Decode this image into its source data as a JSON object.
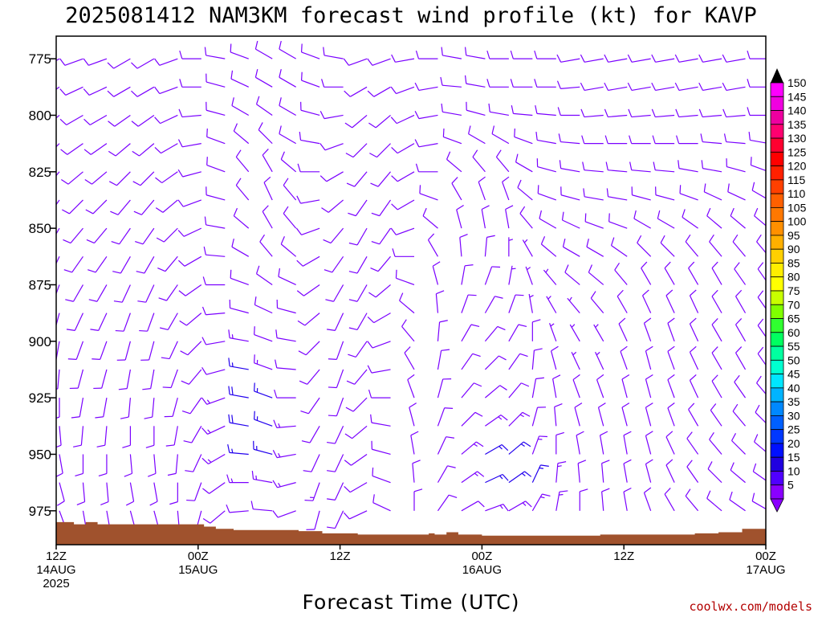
{
  "chart_data": {
    "type": "wind-barb-time-height",
    "title": "2025081412 NAM3KM forecast wind profile (kt) for KAVP",
    "xlabel": "Forecast Time (UTC)",
    "credit": "coolwx.com/models",
    "y_axis": {
      "quantity": "pressure (hPa)",
      "range": [
        765,
        990
      ],
      "inverted": true,
      "ticks": [
        "775",
        "800",
        "825",
        "850",
        "875",
        "900",
        "925",
        "950",
        "975"
      ]
    },
    "x_axis": {
      "range_hours": [
        0,
        60
      ],
      "ticks": [
        {
          "hour": 0,
          "lines": [
            "12Z",
            "14AUG",
            "2025"
          ]
        },
        {
          "hour": 12,
          "lines": [
            "00Z",
            "15AUG"
          ]
        },
        {
          "hour": 24,
          "lines": [
            "12Z"
          ]
        },
        {
          "hour": 36,
          "lines": [
            "00Z",
            "16AUG"
          ]
        },
        {
          "hour": 48,
          "lines": [
            "12Z"
          ]
        },
        {
          "hour": 60,
          "lines": [
            "00Z",
            "17AUG"
          ]
        }
      ]
    },
    "colorbar": {
      "labels": [
        "150",
        "145",
        "140",
        "135",
        "130",
        "125",
        "120",
        "115",
        "110",
        "105",
        "100",
        "95",
        "90",
        "85",
        "80",
        "75",
        "70",
        "65",
        "60",
        "55",
        "50",
        "45",
        "40",
        "35",
        "30",
        "25",
        "20",
        "15",
        "10",
        "5"
      ],
      "colors": [
        "#ff00ff",
        "#f000e0",
        "#ee00a0",
        "#ff0070",
        "#ff0030",
        "#ff0000",
        "#ff2000",
        "#ff4000",
        "#ff6000",
        "#ff7800",
        "#ff9000",
        "#ffb000",
        "#ffd000",
        "#ffee00",
        "#ffff00",
        "#c8ff00",
        "#80ff00",
        "#30ff30",
        "#00ff60",
        "#00ffa0",
        "#00ffd0",
        "#00e6ff",
        "#00b4ff",
        "#0088ff",
        "#0060ff",
        "#0038ff",
        "#0010ff",
        "#2000e0",
        "#5000ff",
        "#8a00ff"
      ]
    },
    "terrain_color": "#a0522d",
    "barb_color": "#7a00ff",
    "barb_color_strong": "#2200ee",
    "surface_pressure": {
      "hour": [
        0,
        1.5,
        2.5,
        3.5,
        6,
        9,
        11.5,
        12.5,
        13.5,
        15,
        18,
        20.5,
        22.5,
        24.5,
        25.5,
        27,
        30,
        31.5,
        32,
        33,
        34,
        36,
        39,
        42,
        44,
        46,
        48,
        50,
        52,
        54,
        56,
        58,
        60
      ],
      "pressure": [
        980,
        981,
        980,
        981,
        981,
        981,
        981,
        982,
        983,
        983.5,
        983.5,
        984,
        985,
        985,
        985.5,
        985.5,
        985.5,
        985,
        985.5,
        984.5,
        985.5,
        986,
        986,
        986,
        986,
        985.5,
        985.5,
        985.5,
        985.5,
        985,
        984.5,
        983,
        983
      ]
    },
    "levels": [
      775,
      787.5,
      800,
      812.5,
      825,
      837.5,
      850,
      862.5,
      875,
      887.5,
      900,
      912.5,
      925,
      937.5,
      950,
      962.5,
      975
    ],
    "hours": [
      0,
      2,
      4,
      6,
      8,
      10,
      12,
      14,
      16,
      18,
      20,
      22,
      24,
      26,
      28,
      30,
      32,
      34,
      36,
      38,
      40,
      42,
      44,
      46,
      48,
      50,
      52,
      54,
      56,
      58,
      60
    ],
    "directions": [
      [
        240,
        250,
        250,
        240,
        240,
        250,
        270,
        280,
        290,
        300,
        300,
        290,
        280,
        250,
        250,
        260,
        270,
        280,
        280,
        270,
        270,
        270,
        260,
        260,
        260,
        260,
        260,
        260,
        260,
        260,
        270
      ],
      [
        235,
        245,
        245,
        240,
        240,
        250,
        270,
        285,
        295,
        300,
        300,
        290,
        270,
        240,
        240,
        250,
        260,
        275,
        280,
        270,
        270,
        270,
        265,
        260,
        260,
        260,
        260,
        260,
        260,
        260,
        270
      ],
      [
        230,
        240,
        240,
        235,
        235,
        245,
        265,
        285,
        300,
        305,
        300,
        285,
        260,
        230,
        230,
        245,
        260,
        280,
        285,
        280,
        275,
        275,
        270,
        265,
        265,
        265,
        265,
        265,
        265,
        265,
        270
      ],
      [
        225,
        235,
        235,
        230,
        230,
        240,
        260,
        290,
        310,
        315,
        300,
        280,
        250,
        225,
        225,
        240,
        260,
        290,
        300,
        300,
        290,
        280,
        275,
        270,
        270,
        270,
        270,
        270,
        275,
        275,
        280
      ],
      [
        220,
        230,
        230,
        225,
        225,
        235,
        255,
        290,
        320,
        330,
        310,
        270,
        240,
        220,
        220,
        240,
        270,
        310,
        320,
        320,
        300,
        285,
        280,
        275,
        275,
        275,
        275,
        280,
        280,
        285,
        290
      ],
      [
        215,
        225,
        225,
        220,
        220,
        230,
        250,
        285,
        320,
        335,
        320,
        260,
        230,
        215,
        215,
        240,
        290,
        330,
        340,
        340,
        310,
        290,
        285,
        280,
        280,
        285,
        285,
        290,
        295,
        295,
        300
      ],
      [
        210,
        220,
        220,
        215,
        215,
        225,
        245,
        280,
        310,
        330,
        320,
        250,
        220,
        210,
        215,
        250,
        310,
        345,
        350,
        350,
        320,
        300,
        295,
        290,
        290,
        300,
        300,
        305,
        310,
        310,
        310
      ],
      [
        205,
        215,
        215,
        210,
        210,
        220,
        240,
        275,
        300,
        320,
        310,
        240,
        215,
        210,
        220,
        270,
        330,
        355,
        5,
        0,
        330,
        310,
        300,
        300,
        305,
        315,
        315,
        320,
        320,
        320,
        320
      ],
      [
        200,
        210,
        210,
        205,
        205,
        215,
        235,
        270,
        290,
        305,
        295,
        235,
        210,
        210,
        230,
        290,
        345,
        10,
        20,
        10,
        340,
        320,
        310,
        310,
        320,
        330,
        330,
        330,
        330,
        325,
        325
      ],
      [
        195,
        205,
        205,
        200,
        200,
        210,
        230,
        265,
        285,
        295,
        285,
        230,
        205,
        210,
        240,
        310,
        355,
        20,
        30,
        20,
        350,
        330,
        320,
        320,
        330,
        335,
        335,
        335,
        330,
        330,
        325
      ],
      [
        190,
        200,
        200,
        195,
        195,
        205,
        225,
        260,
        280,
        290,
        280,
        225,
        200,
        215,
        250,
        320,
        5,
        30,
        40,
        30,
        0,
        340,
        330,
        330,
        335,
        340,
        340,
        335,
        330,
        330,
        325
      ],
      [
        185,
        195,
        195,
        190,
        190,
        200,
        220,
        255,
        280,
        290,
        275,
        220,
        200,
        220,
        260,
        330,
        10,
        35,
        45,
        35,
        5,
        345,
        335,
        335,
        340,
        345,
        340,
        335,
        330,
        330,
        325
      ],
      [
        180,
        190,
        190,
        185,
        185,
        195,
        215,
        250,
        280,
        290,
        270,
        215,
        200,
        225,
        270,
        340,
        15,
        40,
        50,
        40,
        10,
        350,
        340,
        340,
        345,
        345,
        340,
        335,
        330,
        325,
        320
      ],
      [
        175,
        185,
        185,
        180,
        180,
        190,
        210,
        245,
        280,
        290,
        265,
        210,
        205,
        230,
        280,
        345,
        20,
        45,
        55,
        45,
        15,
        355,
        345,
        345,
        345,
        345,
        340,
        330,
        325,
        320,
        315
      ],
      [
        170,
        180,
        180,
        175,
        175,
        185,
        205,
        240,
        275,
        285,
        260,
        205,
        205,
        235,
        285,
        350,
        25,
        50,
        60,
        50,
        20,
        0,
        350,
        350,
        350,
        345,
        335,
        325,
        320,
        315,
        310
      ],
      [
        165,
        175,
        175,
        170,
        170,
        180,
        200,
        235,
        270,
        280,
        255,
        200,
        205,
        240,
        290,
        355,
        30,
        55,
        65,
        55,
        25,
        5,
        355,
        355,
        350,
        345,
        335,
        325,
        315,
        310,
        305
      ],
      [
        160,
        170,
        170,
        165,
        165,
        175,
        195,
        230,
        265,
        275,
        250,
        195,
        205,
        245,
        295,
        0,
        35,
        60,
        70,
        60,
        30,
        10,
        0,
        355,
        350,
        340,
        330,
        320,
        310,
        305,
        300
      ]
    ],
    "speeds": [
      [
        10,
        10,
        10,
        10,
        12,
        12,
        12,
        12,
        12,
        10,
        10,
        10,
        10,
        10,
        10,
        10,
        10,
        12,
        12,
        12,
        12,
        12,
        12,
        12,
        12,
        12,
        12,
        12,
        12,
        12,
        12
      ],
      [
        10,
        10,
        10,
        10,
        12,
        12,
        12,
        12,
        12,
        10,
        10,
        10,
        10,
        10,
        10,
        10,
        10,
        12,
        12,
        12,
        12,
        12,
        12,
        12,
        12,
        12,
        12,
        12,
        12,
        12,
        12
      ],
      [
        10,
        10,
        10,
        10,
        10,
        12,
        12,
        12,
        10,
        10,
        10,
        10,
        10,
        8,
        8,
        8,
        10,
        10,
        10,
        10,
        12,
        12,
        12,
        12,
        12,
        12,
        12,
        12,
        12,
        12,
        12
      ],
      [
        8,
        10,
        10,
        10,
        10,
        10,
        12,
        12,
        10,
        10,
        10,
        8,
        8,
        8,
        8,
        8,
        8,
        10,
        10,
        10,
        10,
        10,
        12,
        12,
        12,
        12,
        12,
        12,
        12,
        12,
        12
      ],
      [
        8,
        8,
        10,
        10,
        10,
        10,
        10,
        10,
        10,
        8,
        8,
        8,
        8,
        8,
        8,
        8,
        8,
        8,
        8,
        8,
        10,
        10,
        10,
        10,
        10,
        12,
        12,
        12,
        12,
        12,
        12
      ],
      [
        8,
        8,
        8,
        10,
        10,
        10,
        10,
        10,
        8,
        8,
        8,
        8,
        8,
        8,
        8,
        8,
        8,
        8,
        8,
        8,
        8,
        10,
        10,
        10,
        10,
        10,
        10,
        10,
        10,
        10,
        10
      ],
      [
        8,
        8,
        8,
        8,
        10,
        10,
        10,
        10,
        8,
        8,
        8,
        8,
        8,
        8,
        8,
        8,
        8,
        8,
        8,
        8,
        8,
        8,
        8,
        10,
        10,
        10,
        10,
        10,
        10,
        10,
        10
      ],
      [
        8,
        8,
        8,
        8,
        8,
        10,
        10,
        10,
        10,
        8,
        8,
        8,
        8,
        8,
        8,
        8,
        8,
        8,
        8,
        6,
        6,
        8,
        8,
        8,
        10,
        10,
        10,
        10,
        10,
        10,
        10
      ],
      [
        8,
        8,
        8,
        8,
        8,
        8,
        10,
        10,
        10,
        10,
        8,
        8,
        8,
        8,
        8,
        8,
        8,
        8,
        8,
        6,
        6,
        6,
        8,
        8,
        8,
        8,
        10,
        10,
        10,
        10,
        10
      ],
      [
        10,
        8,
        8,
        8,
        8,
        8,
        10,
        10,
        12,
        10,
        10,
        8,
        8,
        8,
        8,
        8,
        8,
        8,
        8,
        8,
        6,
        6,
        6,
        8,
        8,
        8,
        8,
        10,
        10,
        10,
        10
      ],
      [
        10,
        10,
        8,
        8,
        8,
        8,
        10,
        12,
        14,
        12,
        10,
        10,
        8,
        8,
        8,
        8,
        8,
        8,
        8,
        8,
        8,
        6,
        6,
        6,
        8,
        8,
        8,
        8,
        10,
        10,
        10
      ],
      [
        10,
        10,
        10,
        8,
        8,
        8,
        10,
        12,
        16,
        14,
        12,
        10,
        10,
        8,
        8,
        8,
        8,
        10,
        10,
        10,
        8,
        8,
        6,
        6,
        8,
        8,
        8,
        8,
        8,
        10,
        10
      ],
      [
        10,
        10,
        10,
        10,
        8,
        8,
        10,
        14,
        18,
        16,
        12,
        10,
        10,
        10,
        8,
        8,
        10,
        10,
        12,
        12,
        10,
        8,
        8,
        8,
        8,
        8,
        8,
        8,
        8,
        8,
        10
      ],
      [
        10,
        10,
        10,
        10,
        10,
        8,
        10,
        14,
        18,
        16,
        14,
        12,
        10,
        10,
        10,
        10,
        10,
        12,
        14,
        14,
        12,
        10,
        8,
        8,
        8,
        8,
        8,
        8,
        8,
        8,
        8
      ],
      [
        10,
        10,
        10,
        10,
        10,
        10,
        10,
        14,
        16,
        16,
        14,
        12,
        12,
        10,
        10,
        10,
        12,
        14,
        16,
        16,
        14,
        12,
        10,
        8,
        8,
        8,
        8,
        8,
        8,
        8,
        8
      ],
      [
        8,
        10,
        10,
        10,
        10,
        10,
        10,
        12,
        14,
        14,
        14,
        14,
        12,
        12,
        10,
        10,
        12,
        14,
        16,
        16,
        16,
        14,
        12,
        10,
        8,
        8,
        8,
        8,
        8,
        8,
        8
      ],
      [
        8,
        8,
        8,
        8,
        8,
        8,
        10,
        10,
        12,
        12,
        12,
        12,
        12,
        12,
        10,
        10,
        12,
        12,
        14,
        14,
        14,
        14,
        12,
        10,
        8,
        8,
        8,
        8,
        8,
        8,
        8
      ]
    ]
  }
}
